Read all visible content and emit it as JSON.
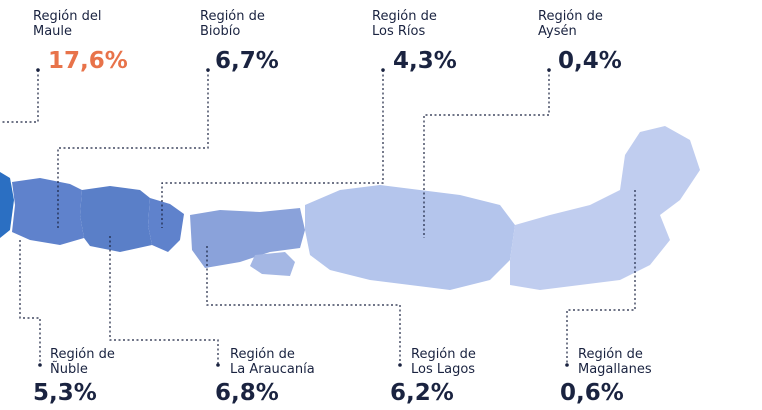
{
  "regions": [
    {
      "name_lines": [
        "Región del",
        "Maule"
      ],
      "percent": "17,6%"
    },
    {
      "name_lines": [
        "Región de",
        "Biobío"
      ],
      "percent": "6,7%"
    },
    {
      "name_lines": [
        "Región de",
        "Los Ríos"
      ],
      "percent": "4,3%"
    },
    {
      "name_lines": [
        "Región de",
        "Aysén"
      ],
      "percent": "0,4%"
    },
    {
      "name_lines": [
        "Región de",
        "Ñuble"
      ],
      "percent": "5,3%"
    },
    {
      "name_lines": [
        "Región de",
        "La Araucanía"
      ],
      "percent": "6,8%"
    },
    {
      "name_lines": [
        "Región de",
        "Los Lagos"
      ],
      "percent": "6,2%"
    },
    {
      "name_lines": [
        "Región de",
        "Magallanes"
      ],
      "percent": "0,6%"
    }
  ]
}
